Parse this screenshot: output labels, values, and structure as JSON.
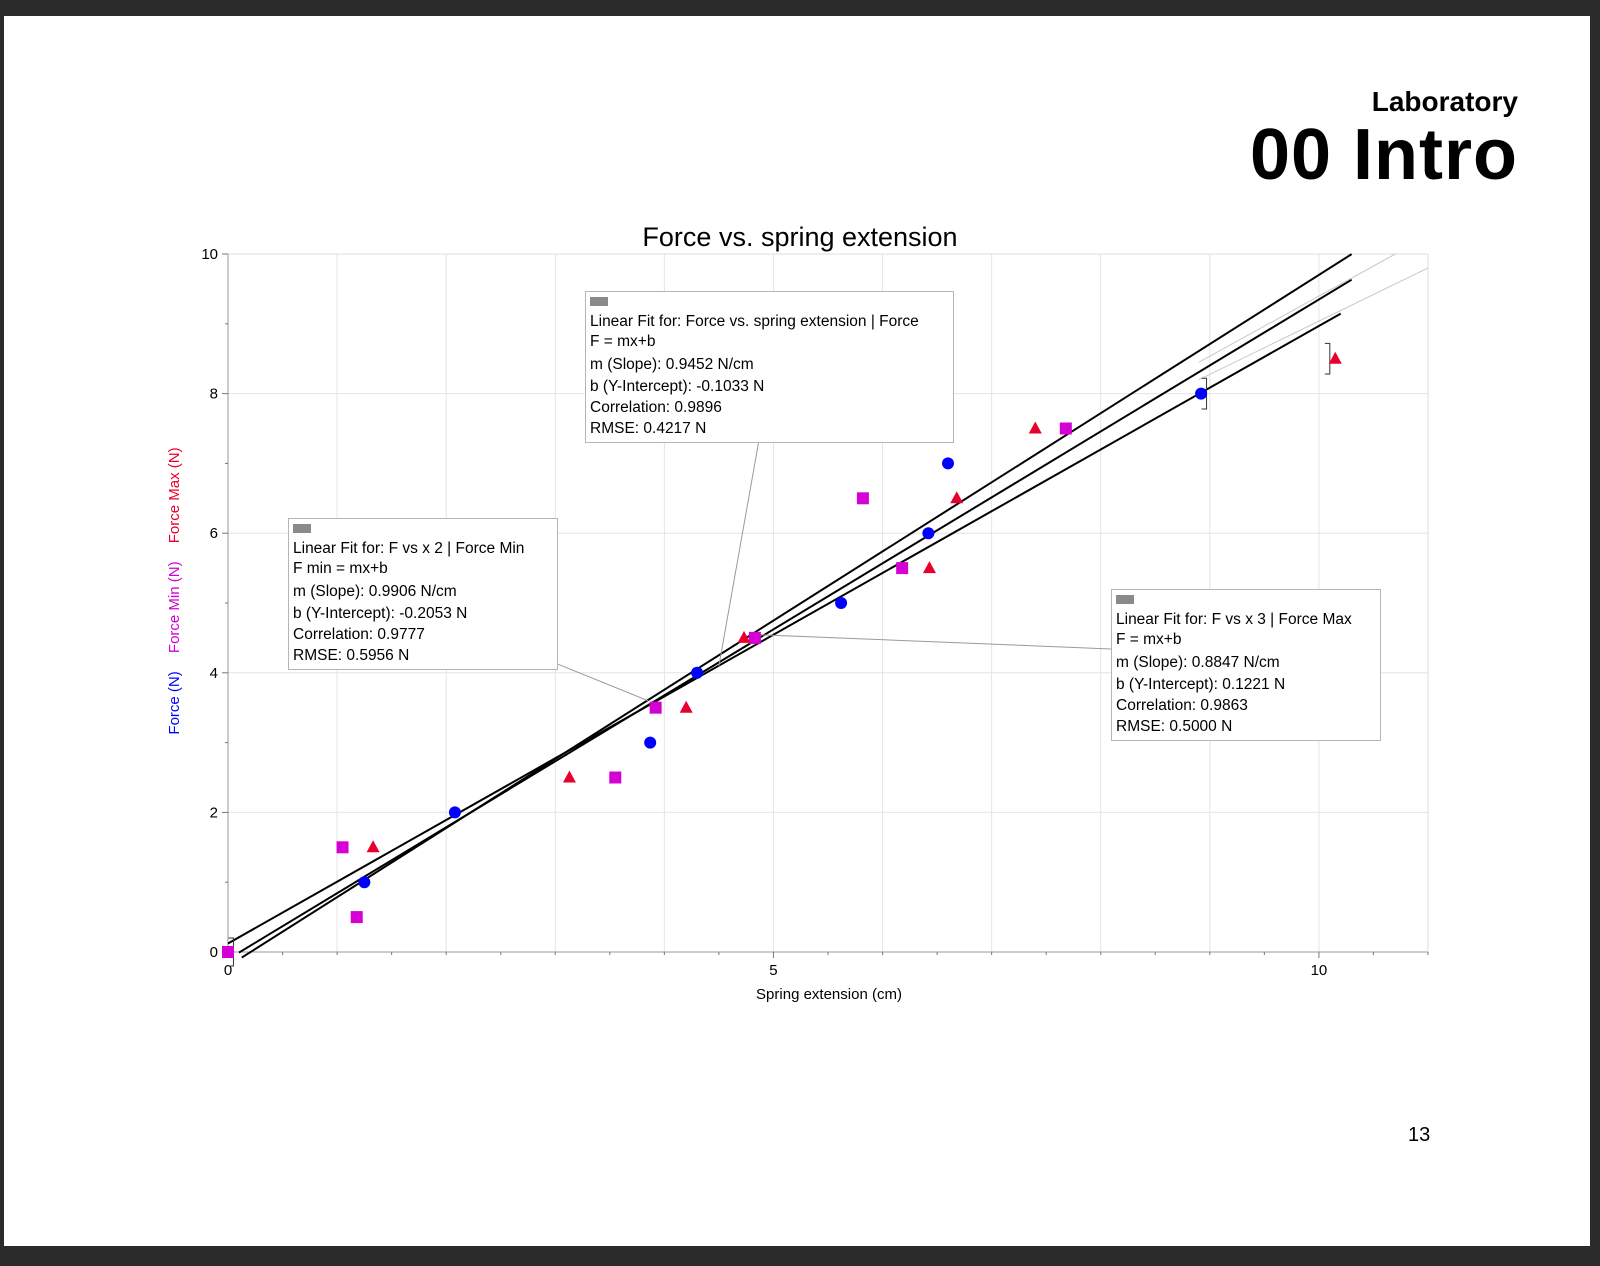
{
  "header": {
    "subtitle": "Laboratory",
    "title": "00 Intro"
  },
  "page_number": "13",
  "colors": {
    "force": "#0000ff",
    "force_min": "#d400d4",
    "force_max": "#e8002c",
    "fit_line": "#000000",
    "guide_line": "#c8c8c8",
    "grid": "#e4e4e4"
  },
  "chart_data": {
    "type": "scatter",
    "title": "Force vs. spring extension",
    "xlabel": "Spring extension (cm)",
    "ylabel": [
      "Force (N)",
      "Force Min (N)",
      "Force Max (N)"
    ],
    "xlim": [
      0,
      11
    ],
    "ylim": [
      0,
      10
    ],
    "x_ticks": [
      "0",
      "5",
      "10"
    ],
    "y_ticks": [
      "0",
      "2",
      "4",
      "6",
      "8",
      "10"
    ],
    "grid": true,
    "series": [
      {
        "name": "Force (N)",
        "marker": "circle",
        "color": "#0000ff",
        "points": [
          [
            0,
            0
          ],
          [
            1.25,
            1
          ],
          [
            2.08,
            2
          ],
          [
            3.87,
            3
          ],
          [
            4.3,
            4
          ],
          [
            5.62,
            5
          ],
          [
            6.42,
            6
          ],
          [
            6.6,
            7
          ],
          [
            8.92,
            8
          ]
        ]
      },
      {
        "name": "Force Min (N)",
        "marker": "square",
        "color": "#d400d4",
        "points": [
          [
            0,
            0
          ],
          [
            1.05,
            1.5
          ],
          [
            1.18,
            0.5
          ],
          [
            3.55,
            2.5
          ],
          [
            3.92,
            3.5
          ],
          [
            4.83,
            4.5
          ],
          [
            5.82,
            6.5
          ],
          [
            6.18,
            5.5
          ],
          [
            7.68,
            7.5
          ]
        ]
      },
      {
        "name": "Force Max (N)",
        "marker": "triangle",
        "color": "#e8002c",
        "points": [
          [
            1.33,
            1.5
          ],
          [
            3.13,
            2.5
          ],
          [
            4.2,
            3.5
          ],
          [
            4.73,
            4.5
          ],
          [
            6.43,
            5.5
          ],
          [
            6.68,
            6.5
          ],
          [
            7.4,
            7.5
          ],
          [
            10.15,
            8.5
          ]
        ]
      }
    ],
    "error_bars": [
      {
        "x": 0.05,
        "y_low": -0.2,
        "y_high": 0.2
      },
      {
        "x": 8.97,
        "y_low": 7.78,
        "y_high": 8.22
      },
      {
        "x": 10.1,
        "y_low": 8.28,
        "y_high": 8.72
      }
    ],
    "fits": [
      {
        "name": "Force",
        "slope": 0.9452,
        "intercept": -0.1033,
        "x_range": [
          0.1,
          10.3
        ]
      },
      {
        "name": "Force Min",
        "slope": 0.9906,
        "intercept": -0.2053,
        "x_range": [
          0.1,
          10.3
        ]
      },
      {
        "name": "Force Max",
        "slope": 0.8847,
        "intercept": 0.1221,
        "x_range": [
          0,
          10.2
        ]
      }
    ],
    "fit_labels": [
      {
        "lines": [
          "Linear Fit for: Force vs. spring extension | Force",
          "F = mx+b",
          "m (Slope): 0.9452 N/cm",
          "b (Y-Intercept): -0.1033 N",
          "Correlation: 0.9896",
          "RMSE: 0.4217 N"
        ],
        "anchor": [
          4.5,
          4.1
        ]
      },
      {
        "lines": [
          "Linear Fit for: F vs x 2 | Force Min",
          "F min = mx+b",
          "m (Slope): 0.9906 N/cm",
          "b (Y-Intercept): -0.2053 N",
          "Correlation: 0.9777",
          "RMSE: 0.5956 N"
        ],
        "anchor": [
          3.85,
          3.6
        ]
      },
      {
        "lines": [
          "Linear Fit for: F vs x 3 | Force Max",
          "F = mx+b",
          "m (Slope): 0.8847 N/cm",
          "b (Y-Intercept): 0.1221 N",
          "Correlation: 0.9863",
          "RMSE: 0.5000 N"
        ],
        "anchor": [
          4.8,
          4.55
        ]
      }
    ]
  }
}
